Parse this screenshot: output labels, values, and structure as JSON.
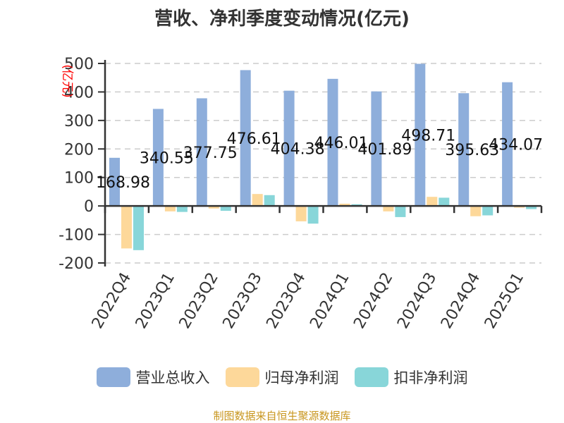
{
  "chart_data": {
    "type": "bar",
    "title": "营收、净利季度变动情况(亿元)",
    "ylabel": "(亿元)",
    "xlabel": "",
    "ylim": [
      -200,
      500
    ],
    "yticks": [
      500,
      400,
      300,
      200,
      100,
      0,
      -100,
      -200
    ],
    "grid": true,
    "legend_position": "bottom",
    "categories": [
      "2022Q4",
      "2023Q1",
      "2023Q2",
      "2023Q3",
      "2023Q4",
      "2024Q1",
      "2024Q2",
      "2024Q3",
      "2024Q4",
      "2025Q1"
    ],
    "series": [
      {
        "name": "营业总收入",
        "color": "#8eaedb",
        "values": [
          168.98,
          340.55,
          377.75,
          476.61,
          404.38,
          446.01,
          401.89,
          498.71,
          395.63,
          434.07
        ],
        "labels": [
          "168.98",
          "340.55",
          "377.75",
          "476.61",
          "404.38",
          "446.01",
          "401.89",
          "498.71",
          "395.63",
          "434.07"
        ]
      },
      {
        "name": "归母净利润",
        "color": "#fdd89a",
        "values": [
          -149,
          -19,
          -9,
          42,
          -54,
          8,
          -19,
          32,
          -36,
          -6
        ]
      },
      {
        "name": "扣非净利润",
        "color": "#88d6d9",
        "values": [
          -155,
          -21,
          -17,
          38,
          -62,
          6,
          -39,
          29,
          -33,
          -11
        ]
      }
    ]
  },
  "footer": "制图数据来自恒生聚源数据库"
}
